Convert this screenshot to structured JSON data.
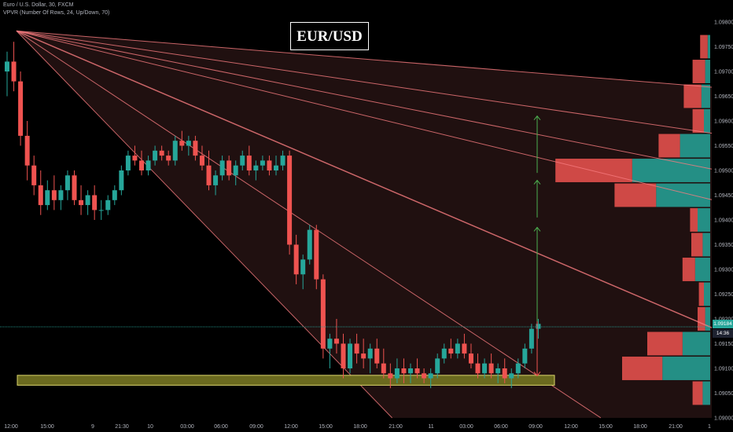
{
  "header": {
    "symbol_line": "Euro / U.S. Dollar, 30, FXCM",
    "indicator_line": "VPVR (Number Of Rows, 24, Up/Down, 70)"
  },
  "title": "EUR/USD",
  "colors": {
    "background": "#000000",
    "up": "#26a69a",
    "down": "#ef5350",
    "fan": "#f77c80",
    "support_fill": "#6b6a1f",
    "support_stroke": "#d8d36a",
    "arrow_up": "#4caf50",
    "arrow_down": "#ef5350",
    "price_line": "#26a69a"
  },
  "current_price": {
    "label": "1.09184",
    "countdown": "14:36",
    "value": 1.09184
  },
  "chart_data": {
    "type": "candlestick",
    "title": "EUR/USD",
    "x_tick_labels": [
      "12:00",
      "15:00",
      "9",
      "21:30",
      "10",
      "03:00",
      "06:00",
      "09:00",
      "12:00",
      "15:00",
      "18:00",
      "21:00",
      "11",
      "03:00",
      "06:00",
      "09:00",
      "12:00",
      "15:00",
      "18:00",
      "21:00",
      "1"
    ],
    "y_tick_labels": [
      "1.09800",
      "1.09750",
      "1.09700",
      "1.09650",
      "1.09600",
      "1.09550",
      "1.09500",
      "1.09450",
      "1.09400",
      "1.09350",
      "1.09300",
      "1.09250",
      "1.09200",
      "1.09150",
      "1.09100",
      "1.09050",
      "1.09000"
    ],
    "ylim": [
      1.09,
      1.098
    ],
    "grid": false,
    "candles": [
      [
        1.097,
        1.0974,
        1.0965,
        1.0972
      ],
      [
        1.0972,
        1.0976,
        1.0966,
        1.0968
      ],
      [
        1.0968,
        1.097,
        1.0955,
        1.0957
      ],
      [
        1.0957,
        1.096,
        1.0948,
        1.0951
      ],
      [
        1.0951,
        1.0953,
        1.0945,
        1.0947
      ],
      [
        1.0947,
        1.095,
        1.0941,
        1.0943
      ],
      [
        1.0943,
        1.0948,
        1.0942,
        1.0946
      ],
      [
        1.0946,
        1.0949,
        1.0942,
        1.0944
      ],
      [
        1.0944,
        1.0947,
        1.0942,
        1.0946
      ],
      [
        1.0946,
        1.095,
        1.0944,
        1.0949
      ],
      [
        1.0949,
        1.095,
        1.0943,
        1.0944
      ],
      [
        1.0944,
        1.0947,
        1.0941,
        1.0943
      ],
      [
        1.0943,
        1.0946,
        1.0941,
        1.0945
      ],
      [
        1.0945,
        1.0947,
        1.094,
        1.0942
      ],
      [
        1.0942,
        1.0944,
        1.094,
        1.0942
      ],
      [
        1.0942,
        1.0945,
        1.0941,
        1.0944
      ],
      [
        1.0944,
        1.0947,
        1.0943,
        1.0946
      ],
      [
        1.0946,
        1.0951,
        1.0945,
        1.095
      ],
      [
        1.095,
        1.0954,
        1.0949,
        1.0953
      ],
      [
        1.0953,
        1.0955,
        1.0951,
        1.0952
      ],
      [
        1.0952,
        1.0954,
        1.0949,
        1.095
      ],
      [
        1.095,
        1.0953,
        1.0949,
        1.0952
      ],
      [
        1.0952,
        1.0955,
        1.0951,
        1.0954
      ],
      [
        1.0954,
        1.0955,
        1.0952,
        1.0953
      ],
      [
        1.0953,
        1.0954,
        1.0951,
        1.0952
      ],
      [
        1.0952,
        1.0957,
        1.0951,
        1.0956
      ],
      [
        1.0956,
        1.0958,
        1.0954,
        1.0955
      ],
      [
        1.0955,
        1.0957,
        1.0953,
        1.0956
      ],
      [
        1.0956,
        1.0957,
        1.0952,
        1.0953
      ],
      [
        1.0953,
        1.0955,
        1.095,
        1.0951
      ],
      [
        1.0951,
        1.0954,
        1.0946,
        1.0947
      ],
      [
        1.0947,
        1.095,
        1.0945,
        1.0949
      ],
      [
        1.0949,
        1.0953,
        1.0948,
        1.0952
      ],
      [
        1.0952,
        1.0953,
        1.0948,
        1.0949
      ],
      [
        1.0949,
        1.0952,
        1.0947,
        1.0951
      ],
      [
        1.0951,
        1.0954,
        1.095,
        1.0953
      ],
      [
        1.0953,
        1.0955,
        1.0949,
        1.095
      ],
      [
        1.095,
        1.0952,
        1.0948,
        1.0951
      ],
      [
        1.0951,
        1.0953,
        1.095,
        1.0952
      ],
      [
        1.0952,
        1.0953,
        1.0949,
        1.095
      ],
      [
        1.095,
        1.0953,
        1.0949,
        1.0951
      ],
      [
        1.0951,
        1.0954,
        1.095,
        1.0953
      ],
      [
        1.0953,
        1.0954,
        1.0933,
        1.0935
      ],
      [
        1.0935,
        1.0937,
        1.0927,
        1.0929
      ],
      [
        1.0929,
        1.0933,
        1.0926,
        1.0932
      ],
      [
        1.0932,
        1.0939,
        1.0931,
        1.0938
      ],
      [
        1.0938,
        1.0939,
        1.0926,
        1.0928
      ],
      [
        1.0928,
        1.0929,
        1.0912,
        1.0914
      ],
      [
        1.0914,
        1.0917,
        1.091,
        1.0916
      ],
      [
        1.0916,
        1.092,
        1.0913,
        1.0915
      ],
      [
        1.0915,
        1.0917,
        1.0908,
        1.091
      ],
      [
        1.091,
        1.0916,
        1.0909,
        1.0915
      ],
      [
        1.0915,
        1.0917,
        1.0911,
        1.0913
      ],
      [
        1.0913,
        1.0916,
        1.091,
        1.0912
      ],
      [
        1.0912,
        1.0915,
        1.0909,
        1.0914
      ],
      [
        1.0914,
        1.0916,
        1.091,
        1.0911
      ],
      [
        1.0911,
        1.0914,
        1.0908,
        1.0909
      ],
      [
        1.0909,
        1.0911,
        1.0906,
        1.0908
      ],
      [
        1.0908,
        1.0912,
        1.0907,
        1.091
      ],
      [
        1.091,
        1.0912,
        1.0907,
        1.0909
      ],
      [
        1.0909,
        1.0911,
        1.0907,
        1.091
      ],
      [
        1.091,
        1.0912,
        1.0908,
        1.0909
      ],
      [
        1.0909,
        1.091,
        1.0907,
        1.0908
      ],
      [
        1.0908,
        1.091,
        1.0906,
        1.0909
      ],
      [
        1.0909,
        1.0913,
        1.0908,
        1.0912
      ],
      [
        1.0912,
        1.0915,
        1.0911,
        1.0914
      ],
      [
        1.0914,
        1.0916,
        1.0912,
        1.0913
      ],
      [
        1.0913,
        1.0916,
        1.0912,
        1.0915
      ],
      [
        1.0915,
        1.0917,
        1.0912,
        1.0913
      ],
      [
        1.0913,
        1.0915,
        1.091,
        1.0911
      ],
      [
        1.0911,
        1.0913,
        1.0908,
        1.0909
      ],
      [
        1.0909,
        1.0912,
        1.0908,
        1.0911
      ],
      [
        1.0911,
        1.0913,
        1.0908,
        1.0909
      ],
      [
        1.0909,
        1.0911,
        1.0907,
        1.091
      ],
      [
        1.091,
        1.0912,
        1.0907,
        1.0908
      ],
      [
        1.0908,
        1.091,
        1.0906,
        1.0909
      ],
      [
        1.0909,
        1.0912,
        1.0908,
        1.0911
      ],
      [
        1.0911,
        1.0915,
        1.091,
        1.0914
      ],
      [
        1.0914,
        1.0919,
        1.0913,
        1.0918
      ],
      [
        1.0918,
        1.092,
        1.0916,
        1.0919
      ]
    ],
    "volume_profile": [
      {
        "price": 1.0975,
        "up": 2,
        "down": 6
      },
      {
        "price": 1.097,
        "up": 4,
        "down": 10
      },
      {
        "price": 1.0965,
        "up": 7,
        "down": 14
      },
      {
        "price": 1.096,
        "up": 5,
        "down": 9
      },
      {
        "price": 1.0955,
        "up": 24,
        "down": 17
      },
      {
        "price": 1.095,
        "up": 62,
        "down": 61
      },
      {
        "price": 1.0945,
        "up": 43,
        "down": 33
      },
      {
        "price": 1.094,
        "up": 10,
        "down": 6
      },
      {
        "price": 1.0935,
        "up": 6,
        "down": 9
      },
      {
        "price": 1.093,
        "up": 12,
        "down": 10
      },
      {
        "price": 1.0925,
        "up": 5,
        "down": 4
      },
      {
        "price": 1.092,
        "up": 4,
        "down": 6
      },
      {
        "price": 1.0915,
        "up": 22,
        "down": 28
      },
      {
        "price": 1.091,
        "up": 38,
        "down": 32
      },
      {
        "price": 1.0905,
        "up": 6,
        "down": 8
      }
    ],
    "support_zone": {
      "low": 1.09066,
      "high": 1.09086
    },
    "fan_origin": {
      "candle": 0,
      "price": 1.09782
    },
    "fan_angles_price_per_candle": [
      -1.1e-05,
      -2e-05,
      -2.7e-05,
      -3.3e-05,
      -5.8e-05,
      -9e-05,
      -0.00014
    ],
    "targets": [
      {
        "from": 1.09085,
        "to": 1.09385,
        "dir": "up"
      },
      {
        "from": 1.09405,
        "to": 1.0948,
        "dir": "up"
      },
      {
        "from": 1.09495,
        "to": 1.0961,
        "dir": "up"
      },
      {
        "from": 1.09195,
        "to": 1.09085,
        "dir": "down"
      }
    ]
  }
}
